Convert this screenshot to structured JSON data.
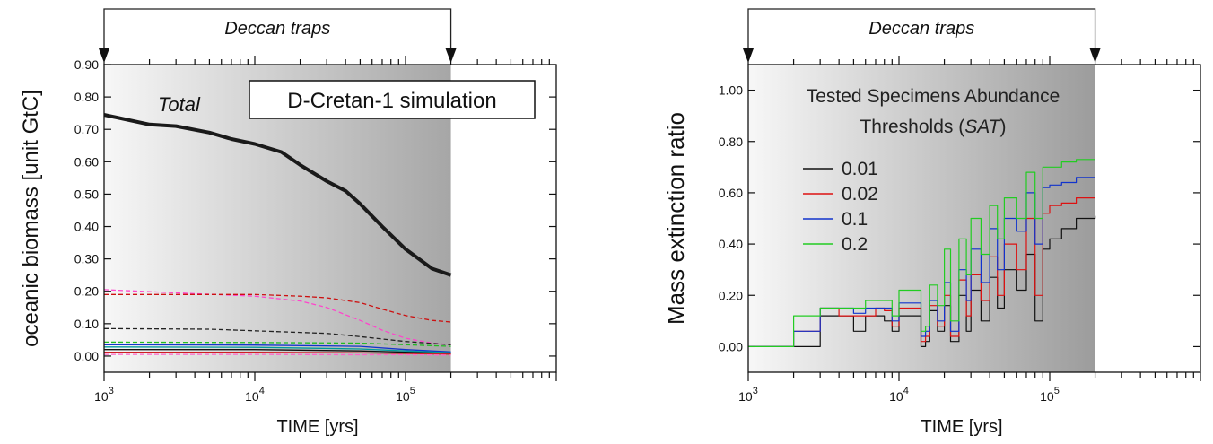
{
  "chart_data": [
    {
      "type": "line",
      "xlabel": "TIME [yrs]",
      "ylabel": "oceanic biomass [unit GtC]",
      "x_scale": "log",
      "xlim": [
        1000,
        1000000
      ],
      "ylim": [
        -0.05,
        0.9
      ],
      "y_ticks": [
        "0.00",
        "0.10",
        "0.20",
        "0.30",
        "0.40",
        "0.50",
        "0.60",
        "0.70",
        "0.80",
        "0.90"
      ],
      "x_tick_bases": [
        "10",
        "10",
        "10"
      ],
      "x_tick_exps": [
        "3",
        "4",
        "5"
      ],
      "annotation_top": "Deccan traps",
      "boxed_label": "D-Cretan-1 simulation",
      "curve_label": "Total",
      "shaded_until": 200000,
      "series": [
        {
          "name": "Total",
          "color": "#1a1a1a",
          "style": "solid",
          "x": [
            1000,
            2000,
            3000,
            5000,
            7000,
            10000,
            15000,
            20000,
            30000,
            40000,
            50000,
            70000,
            100000,
            150000,
            200000
          ],
          "values": [
            0.745,
            0.715,
            0.71,
            0.69,
            0.67,
            0.655,
            0.63,
            0.59,
            0.54,
            0.51,
            0.47,
            0.4,
            0.33,
            0.27,
            0.25
          ]
        },
        {
          "color": "#ff44cc",
          "style": "dashed",
          "x": [
            1000,
            3000,
            10000,
            20000,
            30000,
            50000,
            70000,
            100000,
            150000,
            200000
          ],
          "values": [
            0.205,
            0.195,
            0.185,
            0.17,
            0.15,
            0.11,
            0.08,
            0.055,
            0.04,
            0.035
          ]
        },
        {
          "color": "#cc1111",
          "style": "dashed",
          "x": [
            1000,
            3000,
            10000,
            20000,
            30000,
            50000,
            70000,
            100000,
            150000,
            200000
          ],
          "values": [
            0.19,
            0.19,
            0.19,
            0.185,
            0.18,
            0.165,
            0.145,
            0.125,
            0.11,
            0.105
          ]
        },
        {
          "color": "#222222",
          "style": "dashed",
          "x": [
            1000,
            5000,
            10000,
            30000,
            50000,
            100000,
            200000
          ],
          "values": [
            0.085,
            0.083,
            0.078,
            0.07,
            0.06,
            0.045,
            0.035
          ]
        },
        {
          "color": "#22bb22",
          "style": "dashed",
          "x": [
            1000,
            10000,
            50000,
            100000,
            200000
          ],
          "values": [
            0.043,
            0.042,
            0.04,
            0.035,
            0.03
          ]
        },
        {
          "color": "#1133cc",
          "style": "solid",
          "x": [
            1000,
            10000,
            50000,
            100000,
            200000
          ],
          "values": [
            0.035,
            0.034,
            0.03,
            0.02,
            0.013
          ]
        },
        {
          "color": "#009999",
          "style": "solid",
          "x": [
            1000,
            10000,
            50000,
            100000,
            200000
          ],
          "values": [
            0.028,
            0.027,
            0.022,
            0.016,
            0.01
          ]
        },
        {
          "color": "#111111",
          "style": "solid",
          "x": [
            1000,
            10000,
            50000,
            100000,
            200000
          ],
          "values": [
            0.02,
            0.02,
            0.016,
            0.012,
            0.008
          ]
        },
        {
          "color": "#cc2222",
          "style": "solid",
          "x": [
            1000,
            10000,
            50000,
            100000,
            200000
          ],
          "values": [
            0.012,
            0.012,
            0.01,
            0.008,
            0.006
          ]
        },
        {
          "color": "#ff66cc",
          "style": "dashed",
          "x": [
            1000,
            10000,
            50000,
            100000,
            200000
          ],
          "values": [
            0.005,
            0.005,
            0.004,
            0.004,
            0.003
          ]
        }
      ]
    },
    {
      "type": "line",
      "xlabel": "TIME [yrs]",
      "ylabel": "Mass extinction ratio",
      "x_scale": "log",
      "xlim": [
        1000,
        1000000
      ],
      "ylim": [
        -0.1,
        1.1
      ],
      "y_ticks": [
        "0.00",
        "0.20",
        "0.40",
        "0.60",
        "0.80",
        "1.00"
      ],
      "x_tick_bases": [
        "10",
        "10",
        "10"
      ],
      "x_tick_exps": [
        "3",
        "4",
        "5"
      ],
      "annotation_top": "Deccan traps",
      "legend_title_line1": "Tested Specimens Abundance",
      "legend_title_line2_pre": "Thresholds (",
      "legend_title_line2_ital": "SAT",
      "legend_title_line2_post": ")",
      "shaded_until": 200000,
      "series": [
        {
          "name": "0.01",
          "color": "#111111",
          "x": [
            1000,
            2000,
            3000,
            4000,
            5000,
            6000,
            7000,
            8000,
            9000,
            10000,
            12000,
            14000,
            15000,
            16000,
            18000,
            20000,
            22000,
            25000,
            28000,
            30000,
            35000,
            40000,
            45000,
            50000,
            60000,
            70000,
            80000,
            90000,
            100000,
            120000,
            150000,
            200000
          ],
          "values": [
            0.0,
            0.0,
            0.12,
            0.12,
            0.06,
            0.12,
            0.12,
            0.1,
            0.06,
            0.12,
            0.12,
            0.0,
            0.02,
            0.14,
            0.06,
            0.16,
            0.02,
            0.2,
            0.06,
            0.22,
            0.1,
            0.27,
            0.15,
            0.3,
            0.22,
            0.36,
            0.1,
            0.38,
            0.42,
            0.46,
            0.5,
            0.51
          ]
        },
        {
          "name": "0.02",
          "color": "#dd1111",
          "x": [
            1000,
            2000,
            3000,
            4000,
            5000,
            6000,
            7000,
            8000,
            9000,
            10000,
            12000,
            14000,
            15000,
            16000,
            18000,
            20000,
            22000,
            25000,
            28000,
            30000,
            35000,
            40000,
            45000,
            50000,
            60000,
            70000,
            80000,
            90000,
            100000,
            120000,
            150000,
            200000
          ],
          "values": [
            0.0,
            0.06,
            0.15,
            0.12,
            0.12,
            0.12,
            0.15,
            0.14,
            0.08,
            0.15,
            0.15,
            0.02,
            0.04,
            0.16,
            0.08,
            0.2,
            0.04,
            0.26,
            0.12,
            0.28,
            0.18,
            0.35,
            0.2,
            0.4,
            0.3,
            0.5,
            0.2,
            0.52,
            0.55,
            0.56,
            0.58,
            0.58
          ]
        },
        {
          "name": "0.1",
          "color": "#1133cc",
          "x": [
            1000,
            2000,
            3000,
            4000,
            5000,
            6000,
            7000,
            8000,
            9000,
            10000,
            12000,
            14000,
            15000,
            16000,
            18000,
            20000,
            22000,
            25000,
            28000,
            30000,
            35000,
            40000,
            45000,
            50000,
            60000,
            70000,
            80000,
            90000,
            100000,
            120000,
            150000,
            200000
          ],
          "values": [
            0.0,
            0.06,
            0.15,
            0.15,
            0.13,
            0.15,
            0.15,
            0.15,
            0.1,
            0.17,
            0.17,
            0.04,
            0.06,
            0.18,
            0.1,
            0.25,
            0.06,
            0.3,
            0.18,
            0.38,
            0.25,
            0.46,
            0.3,
            0.5,
            0.45,
            0.6,
            0.4,
            0.62,
            0.63,
            0.64,
            0.66,
            0.66
          ]
        },
        {
          "name": "0.2",
          "color": "#22cc22",
          "x": [
            1000,
            2000,
            3000,
            4000,
            5000,
            6000,
            7000,
            8000,
            9000,
            10000,
            12000,
            14000,
            15000,
            16000,
            18000,
            20000,
            22000,
            25000,
            28000,
            30000,
            35000,
            40000,
            45000,
            50000,
            60000,
            70000,
            80000,
            90000,
            100000,
            120000,
            150000,
            200000
          ],
          "values": [
            0.0,
            0.12,
            0.15,
            0.15,
            0.15,
            0.18,
            0.18,
            0.18,
            0.12,
            0.22,
            0.22,
            0.06,
            0.08,
            0.24,
            0.16,
            0.38,
            0.1,
            0.42,
            0.28,
            0.5,
            0.36,
            0.55,
            0.42,
            0.58,
            0.5,
            0.68,
            0.5,
            0.7,
            0.7,
            0.72,
            0.73,
            0.73
          ]
        }
      ]
    }
  ]
}
